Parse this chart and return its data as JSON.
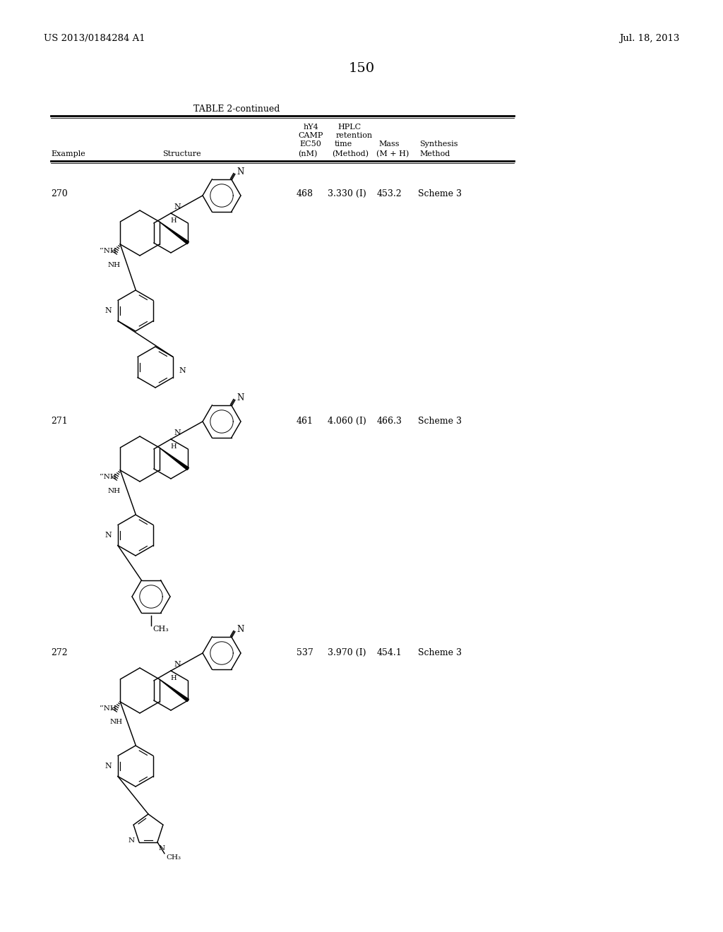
{
  "page_number": "150",
  "patent_left": "US 2013/0184284 A1",
  "patent_right": "Jul. 18, 2013",
  "table_title": "TABLE 2-continued",
  "bg_color": "#ffffff",
  "text_color": "#000000",
  "rows": [
    {
      "example": "270",
      "ec50": "468",
      "hplc": "3.330 (I)",
      "mass": "453.2",
      "synthesis": "Scheme 3"
    },
    {
      "example": "271",
      "ec50": "461",
      "hplc": "4.060 (I)",
      "mass": "466.3",
      "synthesis": "Scheme 3"
    },
    {
      "example": "272",
      "ec50": "537",
      "hplc": "3.970 (I)",
      "mass": "454.1",
      "synthesis": "Scheme 3"
    }
  ]
}
